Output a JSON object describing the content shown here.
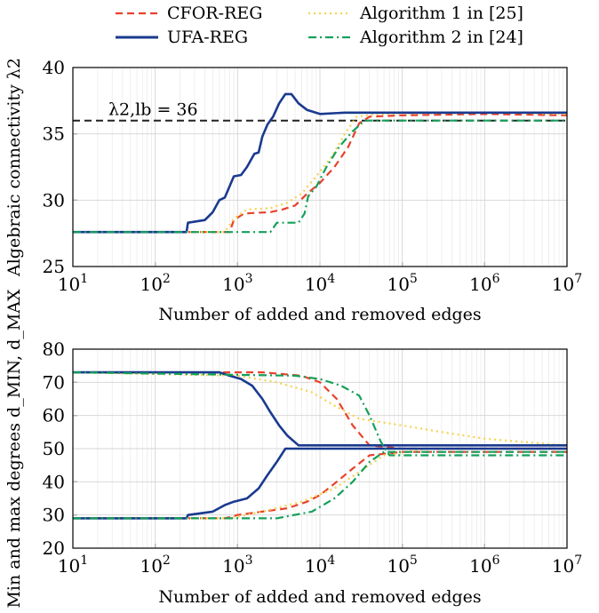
{
  "legend": [
    {
      "label": "CFOR-REG",
      "color": "#e8412c",
      "dash": "8,5"
    },
    {
      "label": "Algorithm 1 in [25]",
      "color": "#f5d24a",
      "dash": "2,4"
    },
    {
      "label": "UFA-REG",
      "color": "#1a3a8f",
      "dash": ""
    },
    {
      "label": "Algorithm 2 in [24]",
      "color": "#14a05a",
      "dash": "9,4,2,4"
    }
  ],
  "chart_data": [
    {
      "type": "line",
      "x_scale": "log",
      "xlim": [
        10,
        10000000
      ],
      "ylim": [
        25,
        40
      ],
      "xlabel": "Number of added and removed edges",
      "ylabel": "Algebraic connectivity λ2",
      "x_ticks": [
        "10^1",
        "10^2",
        "10^3",
        "10^4",
        "10^5",
        "10^6",
        "10^7"
      ],
      "y_ticks": [
        25,
        30,
        35,
        40
      ],
      "grid": true,
      "reference_line": {
        "label": "λ2,lb = 36",
        "y": 36,
        "color": "#222222"
      },
      "series": [
        {
          "name": "CFOR-REG",
          "color": "#e8412c",
          "points": [
            [
              10,
              27.6
            ],
            [
              800,
              27.6
            ],
            [
              900,
              28.5
            ],
            [
              1200,
              29.0
            ],
            [
              2500,
              29.1
            ],
            [
              3500,
              29.3
            ],
            [
              5000,
              29.6
            ],
            [
              7000,
              30.5
            ],
            [
              10000,
              31.3
            ],
            [
              15000,
              32.5
            ],
            [
              22000,
              34.0
            ],
            [
              30000,
              35.8
            ],
            [
              40000,
              36.3
            ],
            [
              100000,
              36.4
            ],
            [
              1000000,
              36.5
            ],
            [
              10000000,
              36.4
            ]
          ]
        },
        {
          "name": "Algorithm 1 in [25]",
          "color": "#f5d24a",
          "points": [
            [
              10,
              27.6
            ],
            [
              700,
              27.6
            ],
            [
              900,
              28.6
            ],
            [
              1300,
              29.3
            ],
            [
              2500,
              29.4
            ],
            [
              4000,
              29.8
            ],
            [
              6000,
              30.5
            ],
            [
              9000,
              31.8
            ],
            [
              14000,
              33.3
            ],
            [
              20000,
              35.0
            ],
            [
              28000,
              36.3
            ],
            [
              50000,
              36.5
            ],
            [
              1000000,
              36.6
            ],
            [
              10000000,
              36.5
            ]
          ]
        },
        {
          "name": "UFA-REG",
          "color": "#1a3a8f",
          "points": [
            [
              10,
              27.6
            ],
            [
              240,
              27.6
            ],
            [
              250,
              28.3
            ],
            [
              400,
              28.5
            ],
            [
              500,
              29.1
            ],
            [
              600,
              30.0
            ],
            [
              700,
              30.2
            ],
            [
              900,
              31.8
            ],
            [
              1100,
              31.9
            ],
            [
              1300,
              32.5
            ],
            [
              1600,
              33.5
            ],
            [
              1800,
              33.6
            ],
            [
              2000,
              34.8
            ],
            [
              2300,
              35.7
            ],
            [
              2700,
              36.3
            ],
            [
              3200,
              37.3
            ],
            [
              3800,
              38.0
            ],
            [
              4500,
              38.0
            ],
            [
              5500,
              37.3
            ],
            [
              7000,
              36.8
            ],
            [
              10000,
              36.5
            ],
            [
              20000,
              36.6
            ],
            [
              100000,
              36.6
            ],
            [
              1000000,
              36.6
            ],
            [
              10000000,
              36.6
            ]
          ]
        },
        {
          "name": "Algorithm 2 in [24]",
          "color": "#14a05a",
          "points": [
            [
              10,
              27.6
            ],
            [
              2500,
              27.6
            ],
            [
              3000,
              28.3
            ],
            [
              5500,
              28.3
            ],
            [
              6500,
              29.0
            ],
            [
              7200,
              30.3
            ],
            [
              9000,
              31.0
            ],
            [
              12000,
              32.5
            ],
            [
              17000,
              34.0
            ],
            [
              25000,
              35.2
            ],
            [
              35000,
              36.0
            ],
            [
              100000,
              36.0
            ],
            [
              1000000,
              36.0
            ],
            [
              10000000,
              36.0
            ]
          ]
        }
      ]
    },
    {
      "type": "line",
      "x_scale": "log",
      "xlim": [
        10,
        10000000
      ],
      "ylim": [
        20,
        80
      ],
      "xlabel": "Number of added and removed edges",
      "ylabel": "Min and max degrees d_MIN, d_MAX",
      "x_ticks": [
        "10^1",
        "10^2",
        "10^3",
        "10^4",
        "10^5",
        "10^6",
        "10^7"
      ],
      "y_ticks": [
        20,
        30,
        40,
        50,
        60,
        70,
        80
      ],
      "grid": true,
      "series": [
        {
          "name": "CFOR-REG",
          "color": "#e8412c",
          "points": [
            [
              10,
              73
            ],
            [
              2000,
              73
            ],
            [
              6000,
              72
            ],
            [
              10000,
              70
            ],
            [
              16000,
              65
            ],
            [
              25000,
              57
            ],
            [
              40000,
              51
            ],
            [
              100000,
              50
            ],
            [
              1000000,
              50
            ],
            [
              10000000,
              50
            ]
          ]
        },
        {
          "name": "CFOR-REG",
          "color": "#e8412c",
          "points": [
            [
              10,
              29
            ],
            [
              700,
              29
            ],
            [
              1000,
              30
            ],
            [
              2000,
              31
            ],
            [
              4000,
              32
            ],
            [
              7000,
              34
            ],
            [
              10000,
              36
            ],
            [
              16000,
              40
            ],
            [
              25000,
              44
            ],
            [
              40000,
              48
            ],
            [
              100000,
              49
            ],
            [
              10000000,
              49
            ]
          ]
        },
        {
          "name": "Algorithm 1 in [25]",
          "color": "#f5d24a",
          "points": [
            [
              10,
              73
            ],
            [
              1000,
              72
            ],
            [
              3000,
              70
            ],
            [
              8000,
              67
            ],
            [
              15000,
              63
            ],
            [
              30000,
              59
            ],
            [
              100000,
              57
            ],
            [
              300000,
              55
            ],
            [
              1000000,
              53
            ],
            [
              3000000,
              52
            ],
            [
              10000000,
              51
            ]
          ]
        },
        {
          "name": "Algorithm 1 in [25]",
          "color": "#f5d24a",
          "points": [
            [
              10,
              29
            ],
            [
              800,
              29
            ],
            [
              2000,
              31
            ],
            [
              6000,
              34
            ],
            [
              15000,
              38
            ],
            [
              30000,
              43
            ],
            [
              60000,
              48
            ],
            [
              200000,
              50
            ],
            [
              10000000,
              50
            ]
          ]
        },
        {
          "name": "UFA-REG",
          "color": "#1a3a8f",
          "points": [
            [
              10,
              73
            ],
            [
              600,
              73
            ],
            [
              800,
              72
            ],
            [
              1100,
              71
            ],
            [
              1500,
              69
            ],
            [
              2000,
              65
            ],
            [
              2500,
              61
            ],
            [
              3200,
              57
            ],
            [
              4000,
              54
            ],
            [
              5500,
              51
            ],
            [
              10000000,
              51
            ]
          ]
        },
        {
          "name": "UFA-REG",
          "color": "#1a3a8f",
          "points": [
            [
              10,
              29
            ],
            [
              240,
              29
            ],
            [
              250,
              30
            ],
            [
              500,
              31
            ],
            [
              700,
              33
            ],
            [
              900,
              34
            ],
            [
              1300,
              35
            ],
            [
              1800,
              38
            ],
            [
              2300,
              42
            ],
            [
              3000,
              46
            ],
            [
              3800,
              50
            ],
            [
              10000000,
              50
            ]
          ]
        },
        {
          "name": "Algorithm 2 in [24]",
          "color": "#14a05a",
          "points": [
            [
              10,
              73
            ],
            [
              5000,
              72
            ],
            [
              10000,
              71
            ],
            [
              18000,
              69
            ],
            [
              30000,
              66
            ],
            [
              40000,
              60
            ],
            [
              55000,
              52
            ],
            [
              70000,
              48
            ],
            [
              1000000,
              48
            ],
            [
              10000000,
              48
            ]
          ]
        },
        {
          "name": "Algorithm 2 in [24]",
          "color": "#14a05a",
          "points": [
            [
              10,
              29
            ],
            [
              3000,
              29
            ],
            [
              8000,
              31
            ],
            [
              15000,
              35
            ],
            [
              25000,
              40
            ],
            [
              40000,
              46
            ],
            [
              60000,
              49
            ],
            [
              10000000,
              49
            ]
          ]
        }
      ]
    }
  ]
}
